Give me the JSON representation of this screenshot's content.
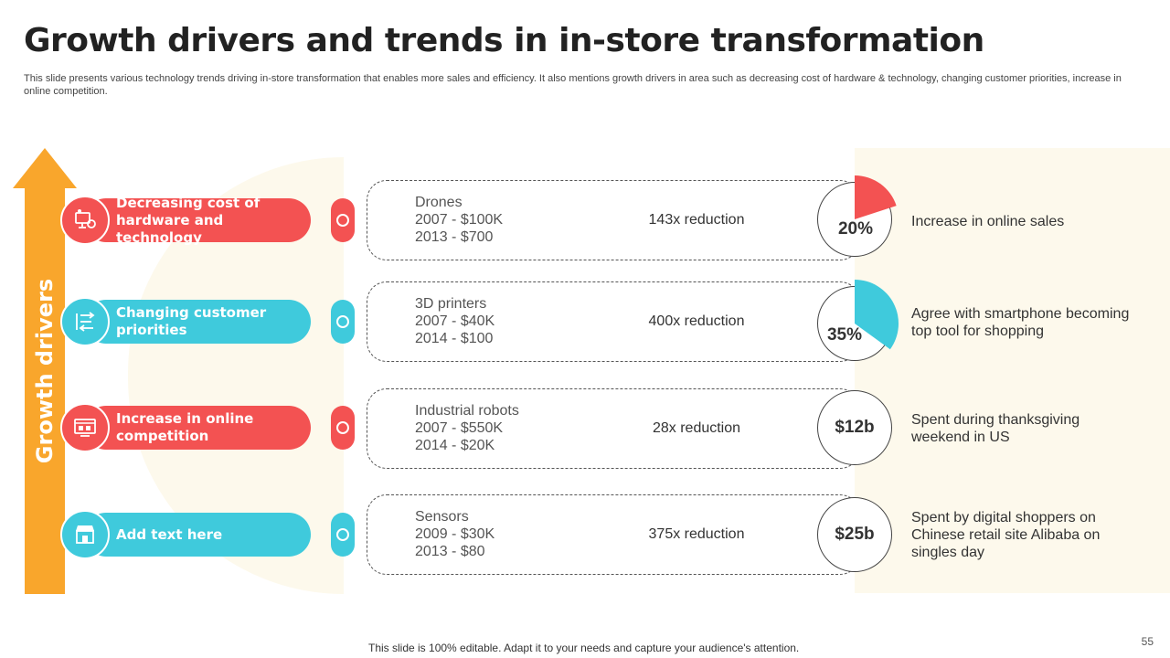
{
  "title": "Growth drivers and trends in in-store transformation",
  "subtitle": "This slide presents various technology trends driving in-store transformation that enables more sales and efficiency. It also mentions growth drivers in area such as decreasing cost of hardware & technology, changing customer priorities, increase in online competition.",
  "arrow_label": "Growth drivers",
  "colors": {
    "red": "#f35252",
    "blue": "#3fcadc",
    "orange": "#f9a62c",
    "cream": "#fdf9ec"
  },
  "drivers": [
    {
      "label": "Decreasing cost of hardware and technology",
      "icon": "hardware-icon",
      "color": "red"
    },
    {
      "label": "Changing customer priorities",
      "icon": "priorities-icon",
      "color": "blue"
    },
    {
      "label": "Increase in online competition",
      "icon": "online-shop-icon",
      "color": "red"
    },
    {
      "label": "Add text here",
      "icon": "store-icon",
      "color": "blue"
    }
  ],
  "trends": [
    {
      "name": "Drones",
      "line1": "2007 - $100K",
      "line2": "2013 - $700",
      "reduction": "143x reduction"
    },
    {
      "name": "3D printers",
      "line1": "2007 - $40K",
      "line2": "2014 - $100",
      "reduction": "400x reduction"
    },
    {
      "name": "Industrial  robots",
      "line1": "2007 - $550K",
      "line2": "2014 - $20K",
      "reduction": "28x reduction"
    },
    {
      "name": "Sensors",
      "line1": "2009 - $30K",
      "line2": "2013 - $80",
      "reduction": "375x reduction"
    }
  ],
  "stats": [
    {
      "value": "20%",
      "pie_percent": 20,
      "color": "red",
      "description": "Increase  in online sales"
    },
    {
      "value": "35%",
      "pie_percent": 35,
      "color": "blue",
      "description": "Agree with smartphone becoming top tool for shopping"
    },
    {
      "value": "$12b",
      "description": "Spent during thanksgiving weekend in US"
    },
    {
      "value": "$25b",
      "description": "Spent by digital shoppers on Chinese retail site Alibaba on singles day"
    }
  ],
  "footer": "This slide is 100% editable. Adapt it to your needs and capture your audience's attention.",
  "page_number": "55"
}
